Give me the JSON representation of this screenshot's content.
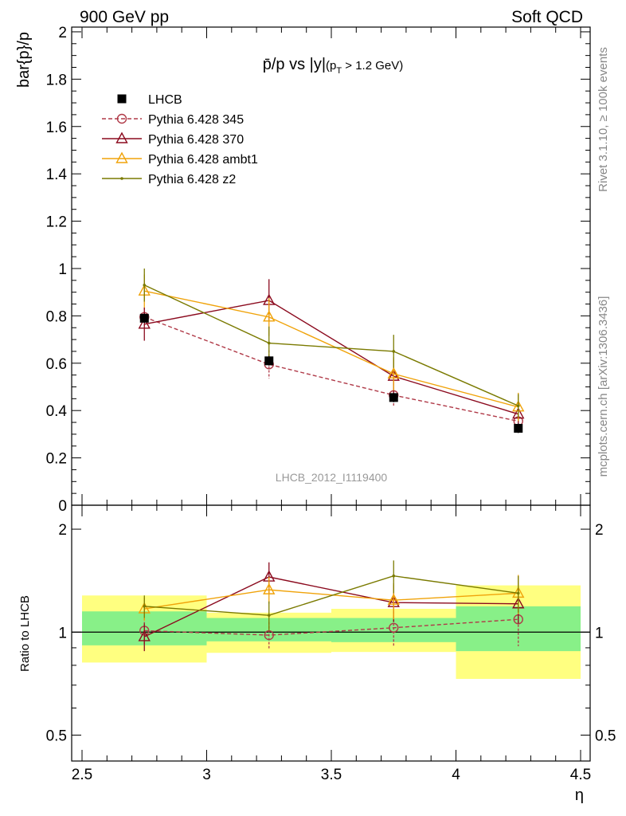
{
  "header": {
    "left": "900 GeV pp",
    "right": "Soft QCD"
  },
  "side": {
    "upper": "Rivet 3.1.10, ≥ 100k events",
    "lower": "mcplots.cern.ch [arXiv:1306.3436]"
  },
  "chart_data": [
    {
      "type": "line",
      "title_main": "p̄/p vs |y|",
      "title_sub": "(p",
      "title_sub_index": "T",
      "title_sub_rest": " > 1.2 GeV)",
      "ylabel": "bar{p}/p",
      "watermark": "LHCB_2012_I1119400",
      "xlim": [
        2.45,
        4.55
      ],
      "ylim": [
        0,
        2.02
      ],
      "yticks": [
        0,
        0.2,
        0.4,
        0.6,
        0.8,
        1,
        1.2,
        1.4,
        1.6,
        1.8,
        2
      ],
      "ytick_labels": [
        "0",
        "0.2",
        "0.4",
        "0.6",
        "0.8",
        "1",
        "1.2",
        "1.4",
        "1.6",
        "1.8",
        "2"
      ],
      "x": [
        2.75,
        3.25,
        3.75,
        4.25
      ],
      "data": {
        "name": "LHCB",
        "values": [
          0.79,
          0.61,
          0.455,
          0.325
        ],
        "err": [
          0.02,
          0.02,
          0.02,
          0.02
        ]
      },
      "series": [
        {
          "name": "Pythia 6.428 345",
          "color": "#b03a48",
          "dash": true,
          "marker": "circle",
          "values": [
            0.795,
            0.595,
            0.465,
            0.355
          ],
          "err": [
            0.04,
            0.06,
            0.05,
            0.04
          ]
        },
        {
          "name": "Pythia 6.428 370",
          "color": "#8b0a1e",
          "dash": false,
          "marker": "triangle",
          "values": [
            0.765,
            0.865,
            0.545,
            0.385
          ],
          "err": [
            0.07,
            0.09,
            0.07,
            0.05
          ]
        },
        {
          "name": "Pythia 6.428 ambt1",
          "color": "#f0a30a",
          "dash": false,
          "marker": "triangle",
          "values": [
            0.905,
            0.795,
            0.555,
            0.415
          ],
          "err": [
            0.07,
            0.08,
            0.07,
            0.06
          ]
        },
        {
          "name": "Pythia 6.428 z2",
          "color": "#7a7a00",
          "dash": false,
          "marker": "dot",
          "values": [
            0.93,
            0.685,
            0.65,
            0.42
          ],
          "err": [
            0.07,
            0.07,
            0.07,
            0.05
          ]
        }
      ]
    },
    {
      "type": "line",
      "ylabel": "Ratio to LHCB",
      "xlabel": "η",
      "scale": "log",
      "ylim": [
        0.42,
        2.35
      ],
      "yticks": [
        0.5,
        1,
        2
      ],
      "ytick_labels": [
        "0.5",
        "1",
        "2"
      ],
      "xticks": [
        2.5,
        3,
        3.5,
        4,
        4.5
      ],
      "xtick_labels": [
        "2.5",
        "3",
        "3.5",
        "4",
        "4.5"
      ],
      "x": [
        2.75,
        3.25,
        3.75,
        4.25
      ],
      "bands": [
        {
          "xmin": 2.5,
          "xmax": 3.0,
          "inner": [
            0.915,
            1.15
          ],
          "outer": [
            0.815,
            1.28
          ]
        },
        {
          "xmin": 3.0,
          "xmax": 3.5,
          "inner": [
            0.94,
            1.1
          ],
          "outer": [
            0.87,
            1.14
          ]
        },
        {
          "xmin": 3.5,
          "xmax": 4.0,
          "inner": [
            0.935,
            1.1
          ],
          "outer": [
            0.875,
            1.17
          ]
        },
        {
          "xmin": 4.0,
          "xmax": 4.5,
          "inner": [
            0.88,
            1.19
          ],
          "outer": [
            0.73,
            1.37
          ]
        }
      ],
      "series": [
        {
          "name": "Pythia 6.428 345",
          "values": [
            1.01,
            0.98,
            1.03,
            1.09
          ],
          "err": [
            0.09,
            0.09,
            0.12,
            0.18
          ]
        },
        {
          "name": "Pythia 6.428 370",
          "values": [
            0.97,
            1.45,
            1.22,
            1.21
          ],
          "err": [
            0.09,
            0.15,
            0.15,
            0.15
          ]
        },
        {
          "name": "Pythia 6.428 ambt1",
          "values": [
            1.17,
            1.33,
            1.24,
            1.3
          ],
          "err": [
            0.09,
            0.12,
            0.15,
            0.17
          ]
        },
        {
          "name": "Pythia 6.428 z2",
          "values": [
            1.19,
            1.12,
            1.46,
            1.3
          ],
          "err": [
            0.09,
            0.11,
            0.16,
            0.16
          ]
        }
      ]
    }
  ]
}
